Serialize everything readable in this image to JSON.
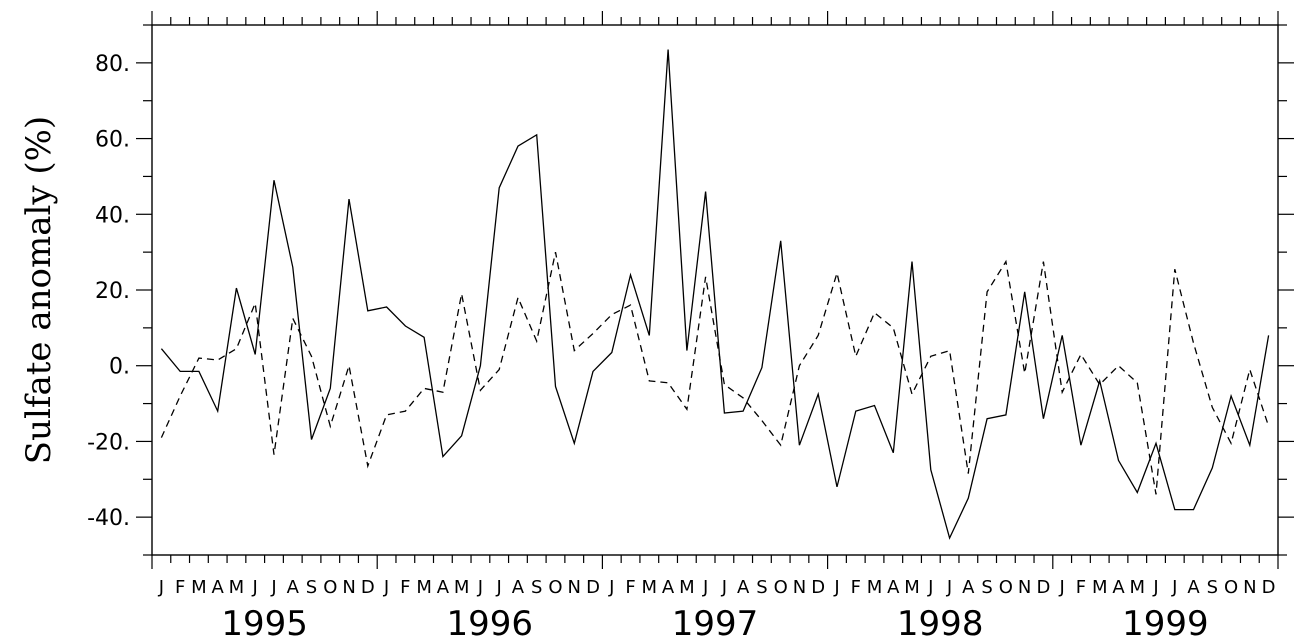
{
  "chart_data": {
    "type": "line",
    "title": "",
    "xlabel": "",
    "ylabel": "Sulfate anomaly (%)",
    "ylim": [
      -50,
      90
    ],
    "yticks": [
      80,
      60,
      40,
      20,
      0,
      -20,
      -40
    ],
    "ytick_labels": [
      "80.",
      "60.",
      "40.",
      "20.",
      "0.",
      "-20.",
      "-40."
    ],
    "month_letters": [
      "J",
      "F",
      "M",
      "A",
      "M",
      "J",
      "J",
      "A",
      "S",
      "O",
      "N",
      "D"
    ],
    "years": [
      "1995",
      "1996",
      "1997",
      "1998",
      "1999"
    ],
    "grid": false,
    "series": [
      {
        "style": "solid",
        "values": [
          4.5,
          -1.5,
          -1.5,
          -12,
          20.5,
          3,
          49,
          26,
          -19.5,
          -6,
          44,
          14.5,
          15.5,
          10.5,
          7.5,
          -24,
          -18.5,
          0,
          47,
          58,
          61,
          -5.5,
          -20.5,
          -1.5,
          3.5,
          24,
          8,
          83.5,
          4,
          46,
          -12.5,
          -12,
          -0.5,
          33,
          -21,
          -7.5,
          -32,
          -12,
          -10.5,
          -23,
          27.5,
          -27.5,
          -45.5,
          -35,
          -14,
          -13,
          19.5,
          -14,
          8,
          -21,
          -4,
          -25,
          -33.5,
          -20.5,
          -38,
          -38,
          -27,
          -8,
          -21,
          8
        ]
      },
      {
        "style": "dashed",
        "values": [
          -19,
          -8,
          2,
          1.5,
          4.5,
          16.5,
          -23.5,
          12.5,
          2.5,
          -16,
          0,
          -26.5,
          -13,
          -12,
          -6,
          -7,
          19,
          -6.5,
          -1,
          18,
          6.5,
          30,
          4,
          8.5,
          13.5,
          16,
          -4,
          -4.5,
          -11.5,
          23.5,
          -5,
          -8.5,
          -14.5,
          -21,
          0,
          8,
          24.5,
          2.5,
          14,
          10,
          -7.5,
          2.5,
          4,
          -28.5,
          19.5,
          27.5,
          -2,
          27.5,
          -7,
          3,
          -5,
          0,
          -4.5,
          -34,
          25.5,
          6,
          -11,
          -20.5,
          -1,
          -16
        ]
      }
    ]
  }
}
